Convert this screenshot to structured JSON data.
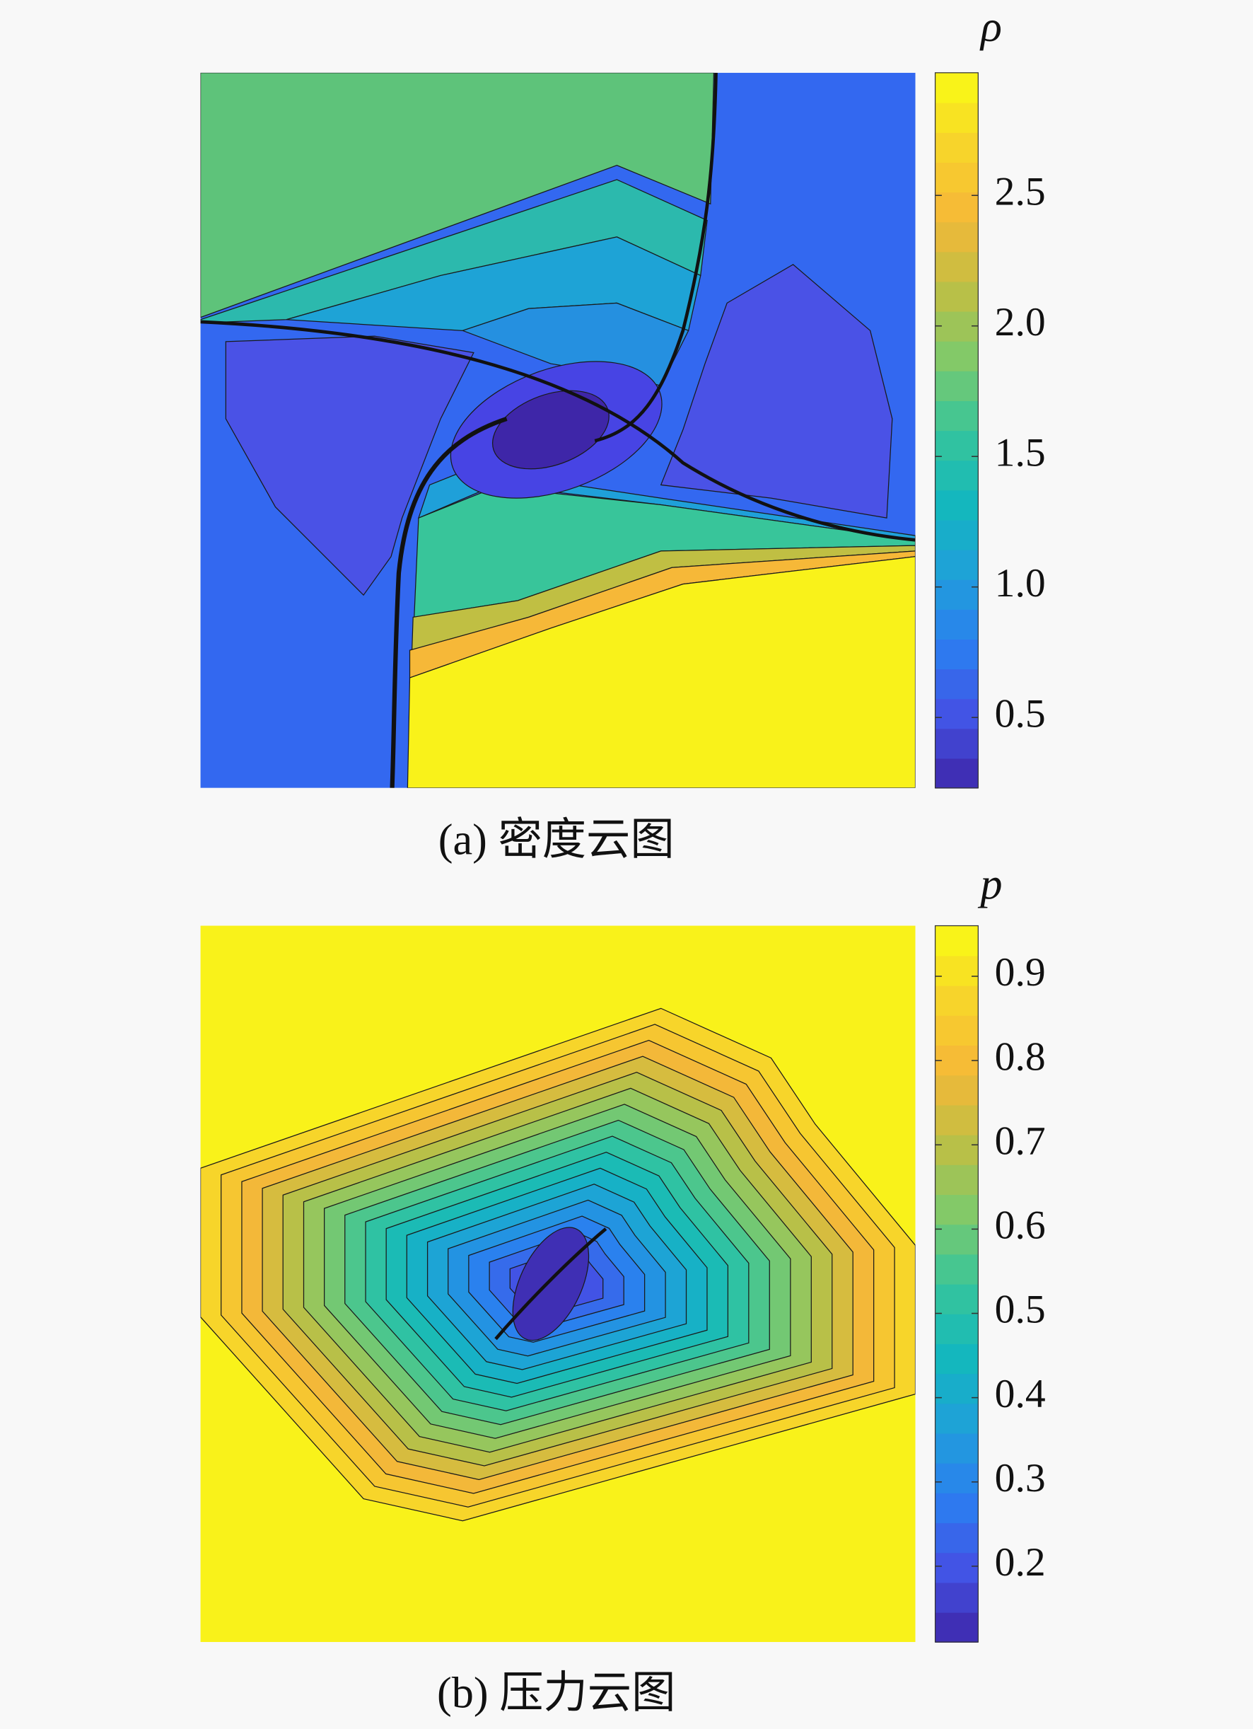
{
  "chart_data": [
    {
      "type": "contour",
      "caption": "(a) 密度云图",
      "colorbar_label": "ρ",
      "colormap": "parula",
      "clim": [
        0.23,
        2.97
      ],
      "cticks": [
        0.5,
        {
          "value": 1,
          "label": "1.0"
        },
        1.5,
        {
          "value": 2,
          "label": "2.0"
        },
        2.5
      ]
    },
    {
      "type": "contour",
      "caption": "(b) 压力云图",
      "colorbar_label": "p",
      "colormap": "parula",
      "clim": [
        0.11,
        0.96
      ],
      "cticks": [
        0.2,
        0.3,
        0.4,
        0.5,
        0.6,
        0.7,
        0.8,
        0.9
      ]
    }
  ]
}
